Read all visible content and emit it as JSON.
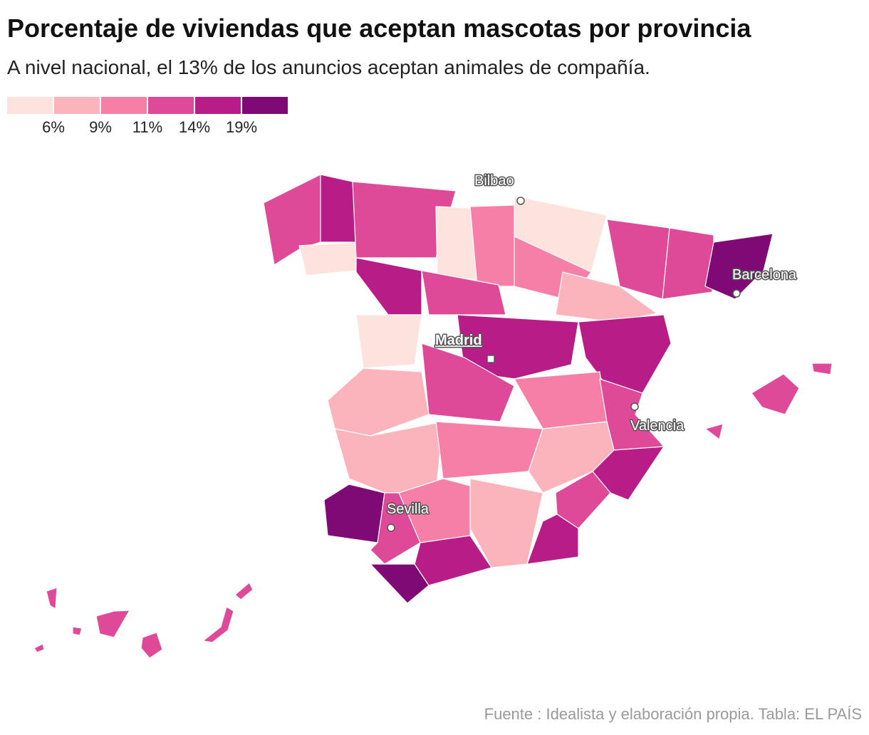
{
  "title": "Porcentaje de viviendas que aceptan mascotas por provincia",
  "subtitle": "A nivel nacional, el 13% de los anuncios aceptan animales de compañía.",
  "legend": {
    "colors": [
      "#fde3de",
      "#fbb3bc",
      "#f67fa7",
      "#df4a98",
      "#b71c87",
      "#7f0a75"
    ],
    "ticks": [
      {
        "value": 6,
        "label": "6%"
      },
      {
        "value": 9,
        "label": "9%"
      },
      {
        "value": 11,
        "label": "11%"
      },
      {
        "value": 14,
        "label": "14%"
      },
      {
        "value": 19,
        "label": "19%"
      }
    ]
  },
  "cities": [
    "Bilbao",
    "Barcelona",
    "Madrid",
    "Valencia",
    "Sevilla"
  ],
  "source": "Fuente : Idealista y elaboración propia. Tabla: EL PAÍS"
}
